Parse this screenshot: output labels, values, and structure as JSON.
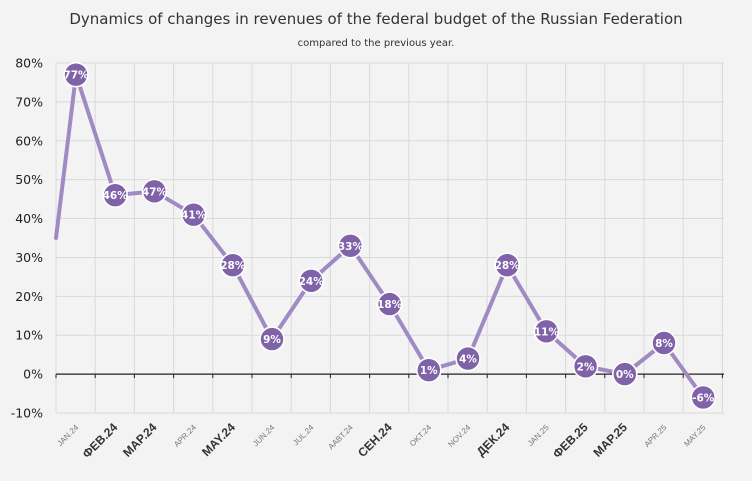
{
  "chart_data": {
    "type": "line",
    "title": "Dynamics of changes in revenues of the federal budget of the Russian Federation",
    "subtitle": "compared to the previous year.",
    "categories": [
      "JAN.24",
      "ФЕВ.24",
      "MAP.24",
      "APR.24",
      "MAY.24",
      "JUN.24",
      "JUL.24",
      "AABT.24",
      "CEH.24",
      "OKT.24",
      "NOV.24",
      "ДЕК.24",
      "JAN.25",
      "ФЕВ.25",
      "MAP.25",
      "APR.25",
      "MAY.25"
    ],
    "category_emphasis": [
      false,
      true,
      true,
      false,
      true,
      false,
      false,
      false,
      true,
      false,
      false,
      true,
      false,
      true,
      true,
      false,
      false
    ],
    "series": [
      {
        "values": [
          77,
          46,
          47,
          41,
          28,
          9,
          24,
          33,
          18,
          1,
          4,
          28,
          11,
          2,
          0,
          8,
          -6
        ],
        "labels": [
          "77%",
          "46%",
          "47%",
          "41%",
          "28%",
          "9%",
          "24%",
          "33%",
          "18%",
          "1%",
          "4%",
          "28%",
          "11%",
          "2%",
          "0%",
          "8%",
          "-6%"
        ]
      }
    ],
    "lead_in_value": 35,
    "ylim": [
      -10,
      80
    ],
    "yticks": [
      -10,
      0,
      10,
      20,
      30,
      40,
      50,
      60,
      70,
      80
    ],
    "ytick_labels": [
      "-10%",
      "0%",
      "10%",
      "20%",
      "30%",
      "40%",
      "50%",
      "60%",
      "70%",
      "80%"
    ],
    "xlabel": "",
    "ylabel": "",
    "grid": true,
    "legend": "none",
    "colors": {
      "line": "#9f8ac4",
      "marker": "#8062a8",
      "marker_stroke": "#ffffff",
      "grid": "#d9d9d9",
      "zero_axis": "#222222",
      "background": "#f3f3f3"
    }
  }
}
